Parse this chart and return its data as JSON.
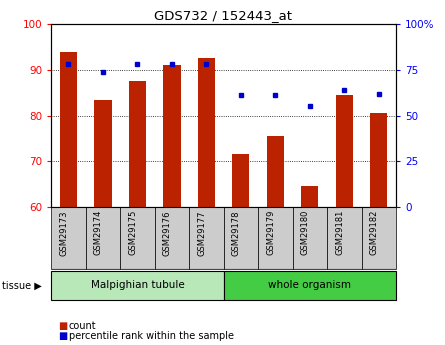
{
  "title": "GDS732 / 152443_at",
  "samples": [
    "GSM29173",
    "GSM29174",
    "GSM29175",
    "GSM29176",
    "GSM29177",
    "GSM29178",
    "GSM29179",
    "GSM29180",
    "GSM29181",
    "GSM29182"
  ],
  "counts": [
    94.0,
    83.5,
    87.5,
    91.0,
    92.5,
    71.5,
    75.5,
    64.5,
    84.5,
    80.5
  ],
  "percentiles": [
    78,
    74,
    78,
    78,
    78,
    61,
    61,
    55,
    64,
    62
  ],
  "ylim_left": [
    60,
    100
  ],
  "ylim_right": [
    0,
    100
  ],
  "yticks_left": [
    60,
    70,
    80,
    90,
    100
  ],
  "yticks_right": [
    0,
    25,
    50,
    75,
    100
  ],
  "ytick_labels_right": [
    "0",
    "25",
    "50",
    "75",
    "100%"
  ],
  "bar_color": "#bb2200",
  "dot_color": "#0000cc",
  "tissue_groups": [
    {
      "label": "Malpighian tubule",
      "start": 0,
      "end": 5,
      "color": "#b8e8b8"
    },
    {
      "label": "whole organism",
      "start": 5,
      "end": 10,
      "color": "#44cc44"
    }
  ],
  "legend_items": [
    {
      "label": "count",
      "color": "#bb2200"
    },
    {
      "label": "percentile rank within the sample",
      "color": "#0000cc"
    }
  ],
  "bar_width": 0.5,
  "grid_color": "black",
  "grid_linestyle": ":",
  "background_color": "#ffffff",
  "plot_bg_color": "#ffffff",
  "tick_bg_color": "#cccccc"
}
